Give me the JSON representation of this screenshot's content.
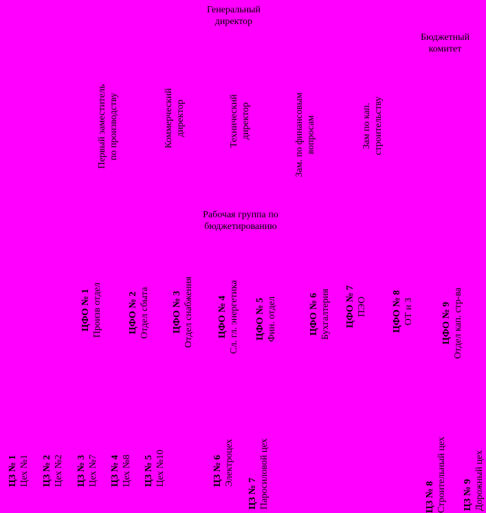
{
  "top": {
    "gen_dir": [
      "Генеральный",
      "директор"
    ],
    "budget_committee": [
      "Бюджетный",
      "комитет"
    ],
    "working_group": [
      "Рабочая группа по",
      "бюджетированию"
    ]
  },
  "deputies": [
    [
      "Первый заместитель",
      "по производству"
    ],
    [
      "Коммерческий",
      "директор"
    ],
    [
      "Технический",
      "директор"
    ],
    [
      "Зам. по финансовым",
      "вопросам"
    ],
    [
      "Зам по кап.",
      "строительству"
    ]
  ],
  "cfo": [
    {
      "code": "ЦФО № 1",
      "name": "Произв отдел"
    },
    {
      "code": "ЦФО № 2",
      "name": "Отдел сбыта"
    },
    {
      "code": "ЦФО № 3",
      "name": "Отдел снабжения"
    },
    {
      "code": "ЦФО № 4",
      "name": "Сл. гл. энергетика"
    },
    {
      "code": "ЦФО № 5",
      "name": "Фин. отдел"
    },
    {
      "code": "ЦФО № 6",
      "name": "Бухгалтерия"
    },
    {
      "code": "ЦФО № 7",
      "name": "ПЭО"
    },
    {
      "code": "ЦФО № 8",
      "name": "ОТ и З"
    },
    {
      "code": "ЦФО № 9",
      "name": "Отдел кап. стр-ва"
    }
  ],
  "cz": [
    {
      "code": "ЦЗ № 1",
      "name": "Цех №1"
    },
    {
      "code": "ЦЗ № 2",
      "name": "Цех №2"
    },
    {
      "code": "ЦЗ № 3",
      "name": "Цех №7"
    },
    {
      "code": "ЦЗ № 4",
      "name": "Цех №8"
    },
    {
      "code": "ЦЗ № 5",
      "name": "Цех №10"
    },
    {
      "code": "ЦЗ № 6",
      "name": "Электроцех"
    },
    {
      "code": "ЦЗ № 7",
      "name": "Паросиловой цех"
    },
    {
      "code": "ЦЗ № 8",
      "name": "Строительный цех"
    },
    {
      "code": "ЦЗ № 9",
      "name": "Дорожный цех"
    }
  ],
  "colors": {
    "background": "#FF00FF",
    "text": "#000000"
  }
}
